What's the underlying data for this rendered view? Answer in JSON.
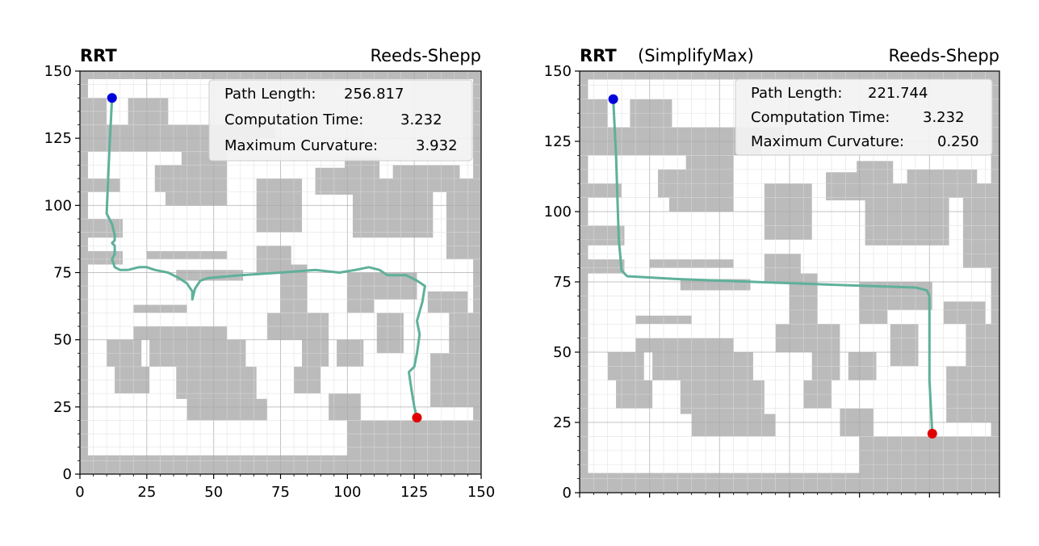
{
  "chart_data": [
    {
      "type": "line",
      "title_bold": "RRT",
      "title_extra": "",
      "title_right": "Reeds-Shepp",
      "xlim": [
        0,
        150
      ],
      "ylim": [
        0,
        150
      ],
      "xticks": [
        "0",
        "25",
        "50",
        "75",
        "100",
        "125",
        "150"
      ],
      "yticks": [
        "0",
        "25",
        "50",
        "75",
        "100",
        "125",
        "150"
      ],
      "show_xtick_labels": true,
      "grid": true,
      "info": {
        "path_length_label": "Path Length:",
        "path_length": "256.817",
        "computation_time_label": "Computation Time:",
        "computation_time": "3.232",
        "max_curvature_label": "Maximum Curvature:",
        "max_curvature": "3.932"
      },
      "start": [
        12,
        140
      ],
      "goal": [
        126,
        21
      ],
      "path_color": "#5fb09a",
      "start_color": "#0000dd",
      "goal_color": "#e00000",
      "obstacle_color": "#bbbbbb",
      "path": [
        [
          12,
          140
        ],
        [
          11,
          120
        ],
        [
          10,
          97
        ],
        [
          12,
          93
        ],
        [
          13,
          89
        ],
        [
          13,
          87
        ],
        [
          12,
          86
        ],
        [
          13,
          85
        ],
        [
          13,
          82
        ],
        [
          12,
          80
        ],
        [
          13,
          77
        ],
        [
          15,
          76
        ],
        [
          18,
          76
        ],
        [
          22,
          77
        ],
        [
          25,
          77
        ],
        [
          28,
          76
        ],
        [
          33,
          75
        ],
        [
          37,
          73
        ],
        [
          40,
          71
        ],
        [
          42,
          68
        ],
        [
          42,
          65
        ],
        [
          43,
          69
        ],
        [
          45,
          72
        ],
        [
          48,
          73
        ],
        [
          60,
          74
        ],
        [
          75,
          75
        ],
        [
          88,
          76
        ],
        [
          97,
          75
        ],
        [
          103,
          76
        ],
        [
          108,
          77
        ],
        [
          112,
          76
        ],
        [
          115,
          74
        ],
        [
          118,
          74
        ],
        [
          122,
          74
        ],
        [
          126,
          72
        ],
        [
          129,
          70
        ],
        [
          128,
          64
        ],
        [
          126,
          57
        ],
        [
          127,
          52
        ],
        [
          126,
          45
        ],
        [
          125,
          40
        ],
        [
          123,
          38
        ],
        [
          124,
          31
        ],
        [
          125,
          25
        ],
        [
          126,
          21
        ]
      ]
    },
    {
      "type": "line",
      "title_bold": "RRT",
      "title_extra": "(SimplifyMax)",
      "title_right": "Reeds-Shepp",
      "xlim": [
        0,
        150
      ],
      "ylim": [
        0,
        150
      ],
      "xticks": [
        "",
        "",
        "",
        "",
        "",
        "",
        ""
      ],
      "yticks": [
        "0",
        "25",
        "50",
        "75",
        "100",
        "125",
        "150"
      ],
      "show_xtick_labels": false,
      "grid": true,
      "info": {
        "path_length_label": "Path Length:",
        "path_length": "221.744",
        "computation_time_label": "Computation Time:",
        "computation_time": "3.232",
        "max_curvature_label": "Maximum Curvature:",
        "max_curvature": "0.250"
      },
      "start": [
        12,
        140
      ],
      "goal": [
        126,
        21
      ],
      "path_color": "#5fb09a",
      "start_color": "#0000dd",
      "goal_color": "#e00000",
      "obstacle_color": "#bbbbbb",
      "path": [
        [
          12,
          140
        ],
        [
          13,
          120
        ],
        [
          14,
          90
        ],
        [
          15,
          79
        ],
        [
          17,
          77
        ],
        [
          35,
          76
        ],
        [
          90,
          74
        ],
        [
          120,
          73
        ],
        [
          124,
          72
        ],
        [
          125,
          70
        ],
        [
          125,
          40
        ],
        [
          126,
          21
        ]
      ]
    }
  ],
  "obstacles": [
    [
      0,
      0,
      150,
      150
    ],
    [
      3,
      120,
      12,
      10
    ],
    [
      3,
      125,
      7,
      15
    ],
    [
      18,
      130,
      15,
      10
    ],
    [
      13,
      125,
      60,
      5
    ],
    [
      10,
      120,
      55,
      5
    ],
    [
      38,
      100,
      17,
      20
    ],
    [
      28,
      105,
      10,
      10
    ],
    [
      32,
      100,
      10,
      5
    ],
    [
      3,
      105,
      12,
      5
    ],
    [
      3,
      88,
      13,
      7
    ],
    [
      3,
      78,
      13,
      5
    ],
    [
      25,
      80,
      30,
      3
    ],
    [
      36,
      72,
      25,
      4
    ],
    [
      20,
      60,
      20,
      3
    ],
    [
      20,
      50,
      35,
      5
    ],
    [
      26,
      40,
      36,
      10
    ],
    [
      36,
      28,
      30,
      12
    ],
    [
      40,
      20,
      30,
      8
    ],
    [
      10,
      40,
      13,
      10
    ],
    [
      13,
      30,
      13,
      10
    ],
    [
      66,
      90,
      17,
      20
    ],
    [
      66,
      75,
      13,
      10
    ],
    [
      75,
      60,
      10,
      18
    ],
    [
      70,
      50,
      20,
      10
    ],
    [
      83,
      40,
      10,
      20
    ],
    [
      80,
      30,
      10,
      10
    ],
    [
      93,
      20,
      12,
      10
    ],
    [
      96,
      40,
      10,
      10
    ],
    [
      100,
      65,
      26,
      10
    ],
    [
      100,
      60,
      10,
      10
    ],
    [
      111,
      45,
      10,
      15
    ],
    [
      102,
      88,
      30,
      22
    ],
    [
      88,
      104,
      17,
      10
    ],
    [
      99,
      110,
      13,
      8
    ],
    [
      117,
      105,
      25,
      10
    ],
    [
      137,
      80,
      13,
      30
    ],
    [
      130,
      60,
      15,
      8
    ],
    [
      138,
      45,
      12,
      15
    ],
    [
      131,
      25,
      19,
      20
    ],
    [
      100,
      0,
      50,
      20
    ],
    [
      70,
      0,
      30,
      7
    ],
    [
      0,
      0,
      70,
      7
    ]
  ]
}
